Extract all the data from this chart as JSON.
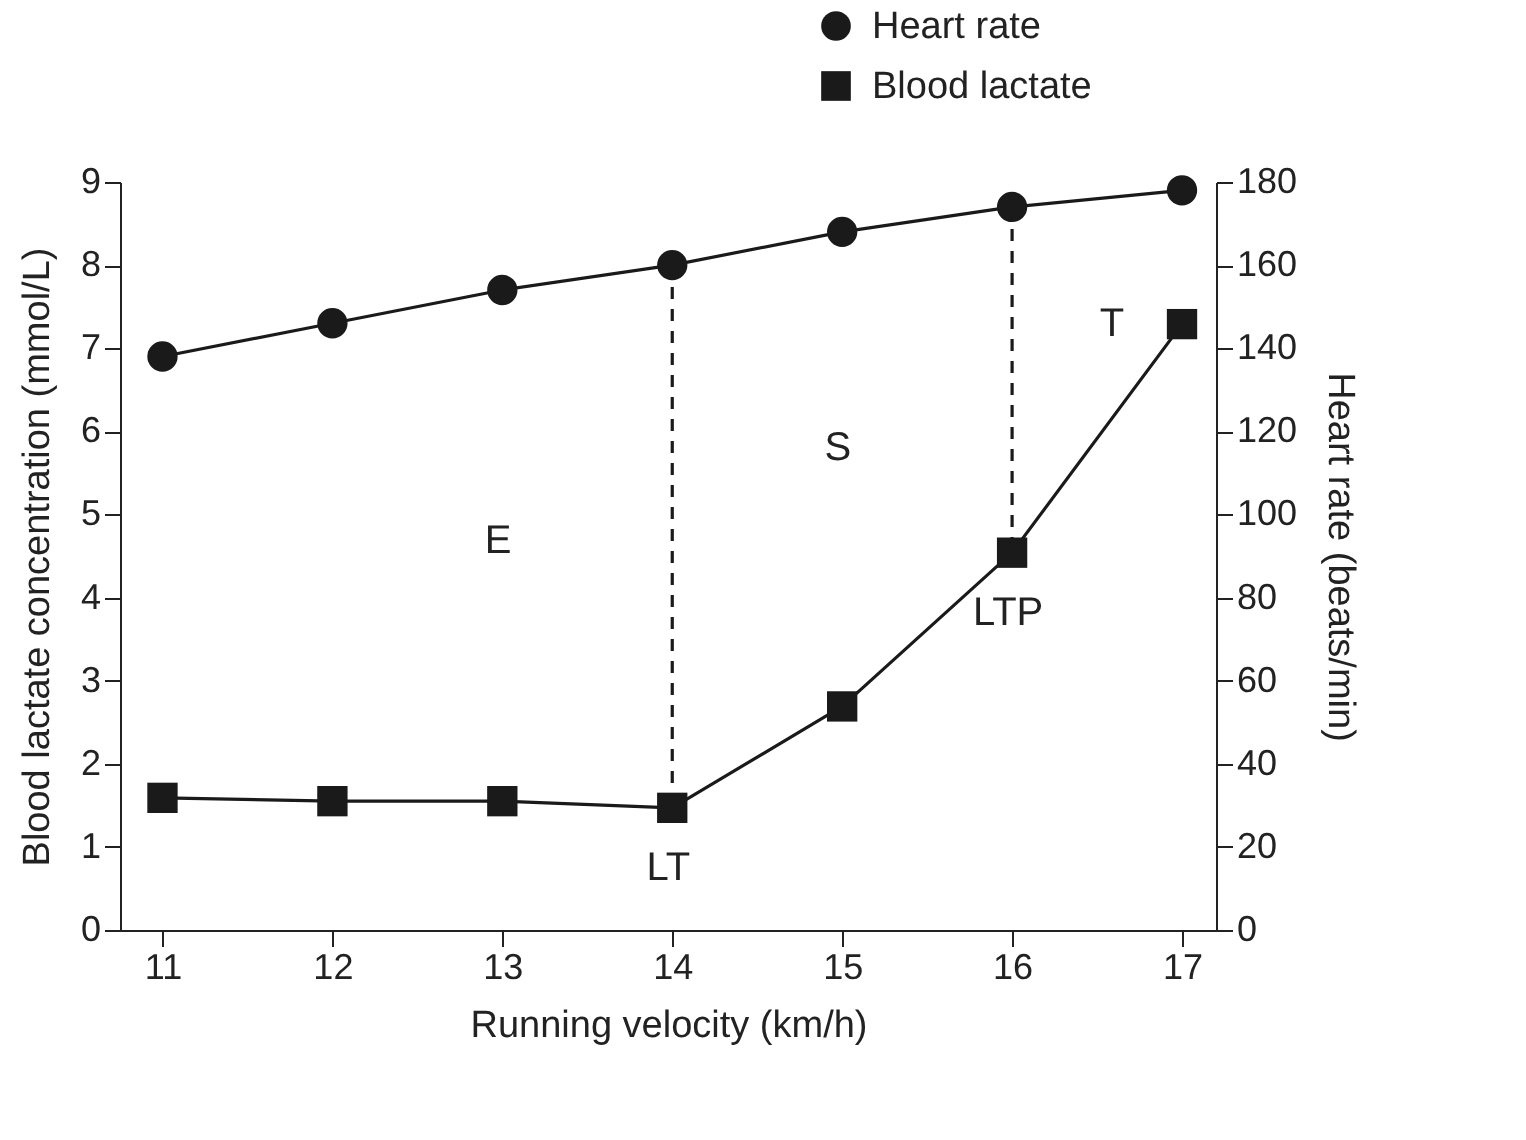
{
  "chart_data": {
    "type": "line",
    "xlabel": "Running velocity (km/h)",
    "ylabel": "Blood lactate concentration (mmol/L)",
    "y2label": "Heart rate (beats/min)",
    "x": [
      11,
      12,
      13,
      14,
      15,
      16,
      17
    ],
    "series": [
      {
        "name": "Heart rate",
        "color": "#1a1a1a",
        "axis": "y2",
        "marker": "circle",
        "values": [
          138,
          146,
          154,
          160,
          168,
          174,
          178
        ]
      },
      {
        "name": "Blood lactate",
        "color": "#1a1a1a",
        "marker": "square",
        "values": [
          1.59,
          1.55,
          1.55,
          1.47,
          2.69,
          4.54,
          7.29
        ]
      }
    ],
    "ref_lines": [
      {
        "axis": "x",
        "value": 14,
        "color": "#1a1a1a",
        "line_style": "dashed"
      },
      {
        "axis": "x",
        "value": 16,
        "color": "#1a1a1a",
        "line_style": "dashed"
      }
    ],
    "xlim": [
      10.75,
      17.2
    ],
    "xticks": [
      11,
      12,
      13,
      14,
      15,
      16,
      17
    ],
    "ylim": [
      0,
      9
    ],
    "yticks": [
      0,
      1,
      2,
      3,
      4,
      5,
      6,
      7,
      8,
      9
    ],
    "y2lim": [
      0,
      180
    ],
    "y2ticks": [
      0,
      20,
      40,
      60,
      80,
      100,
      120,
      140,
      160,
      180
    ],
    "annotations": [
      "E",
      "S",
      "T",
      {
        "text": "LT",
        "x": 14,
        "y": 1.47
      },
      {
        "text": "LTP",
        "x": 16,
        "y": 4.54
      }
    ],
    "grid": false,
    "legend": "top right",
    "line_style": "solid"
  }
}
